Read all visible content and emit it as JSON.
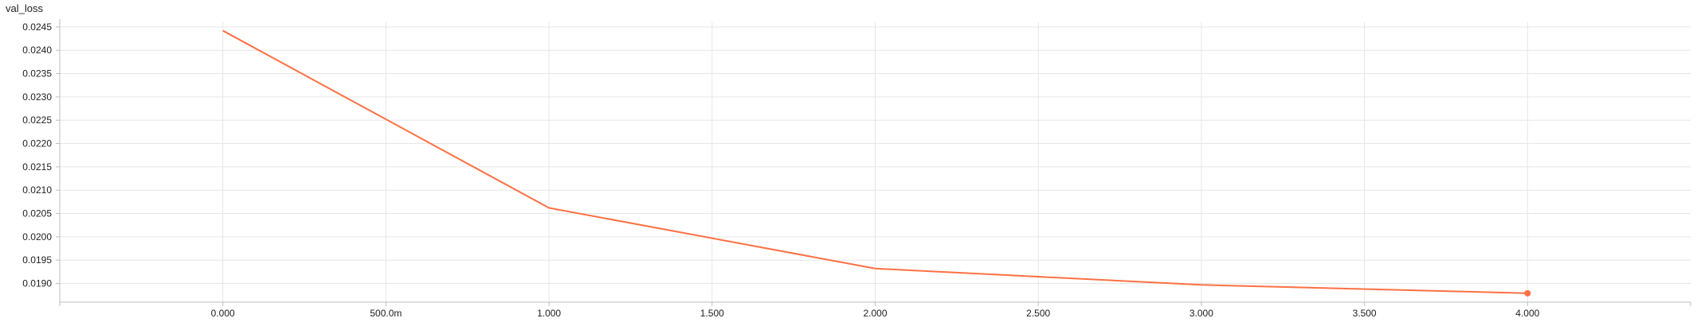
{
  "chart_title": "val_loss",
  "chart_data": {
    "type": "line",
    "title": "val_loss",
    "xlabel": "",
    "ylabel": "",
    "x_tick_labels": [
      "0.000",
      "500.0m",
      "1.000",
      "1.500",
      "2.000",
      "2.500",
      "3.000",
      "3.500",
      "4.000"
    ],
    "x_ticks": [
      0,
      0.5,
      1,
      1.5,
      2,
      2.5,
      3,
      3.5,
      4
    ],
    "y_tick_labels": [
      "0.0190",
      "0.0195",
      "0.0200",
      "0.0205",
      "0.0210",
      "0.0215",
      "0.0220",
      "0.0225",
      "0.0230",
      "0.0235",
      "0.0240",
      "0.0245"
    ],
    "y_ticks": [
      0.019,
      0.0195,
      0.02,
      0.0205,
      0.021,
      0.0215,
      0.022,
      0.0225,
      0.023,
      0.0235,
      0.024,
      0.0245
    ],
    "xlim": [
      -0.5,
      4.5
    ],
    "ylim": [
      0.0186,
      0.0246
    ],
    "grid": true,
    "series": [
      {
        "color": "#ff7043",
        "x": [
          0,
          1,
          2,
          3,
          4
        ],
        "y": [
          0.02442,
          0.02062,
          0.01932,
          0.01897,
          0.01879
        ]
      }
    ]
  }
}
